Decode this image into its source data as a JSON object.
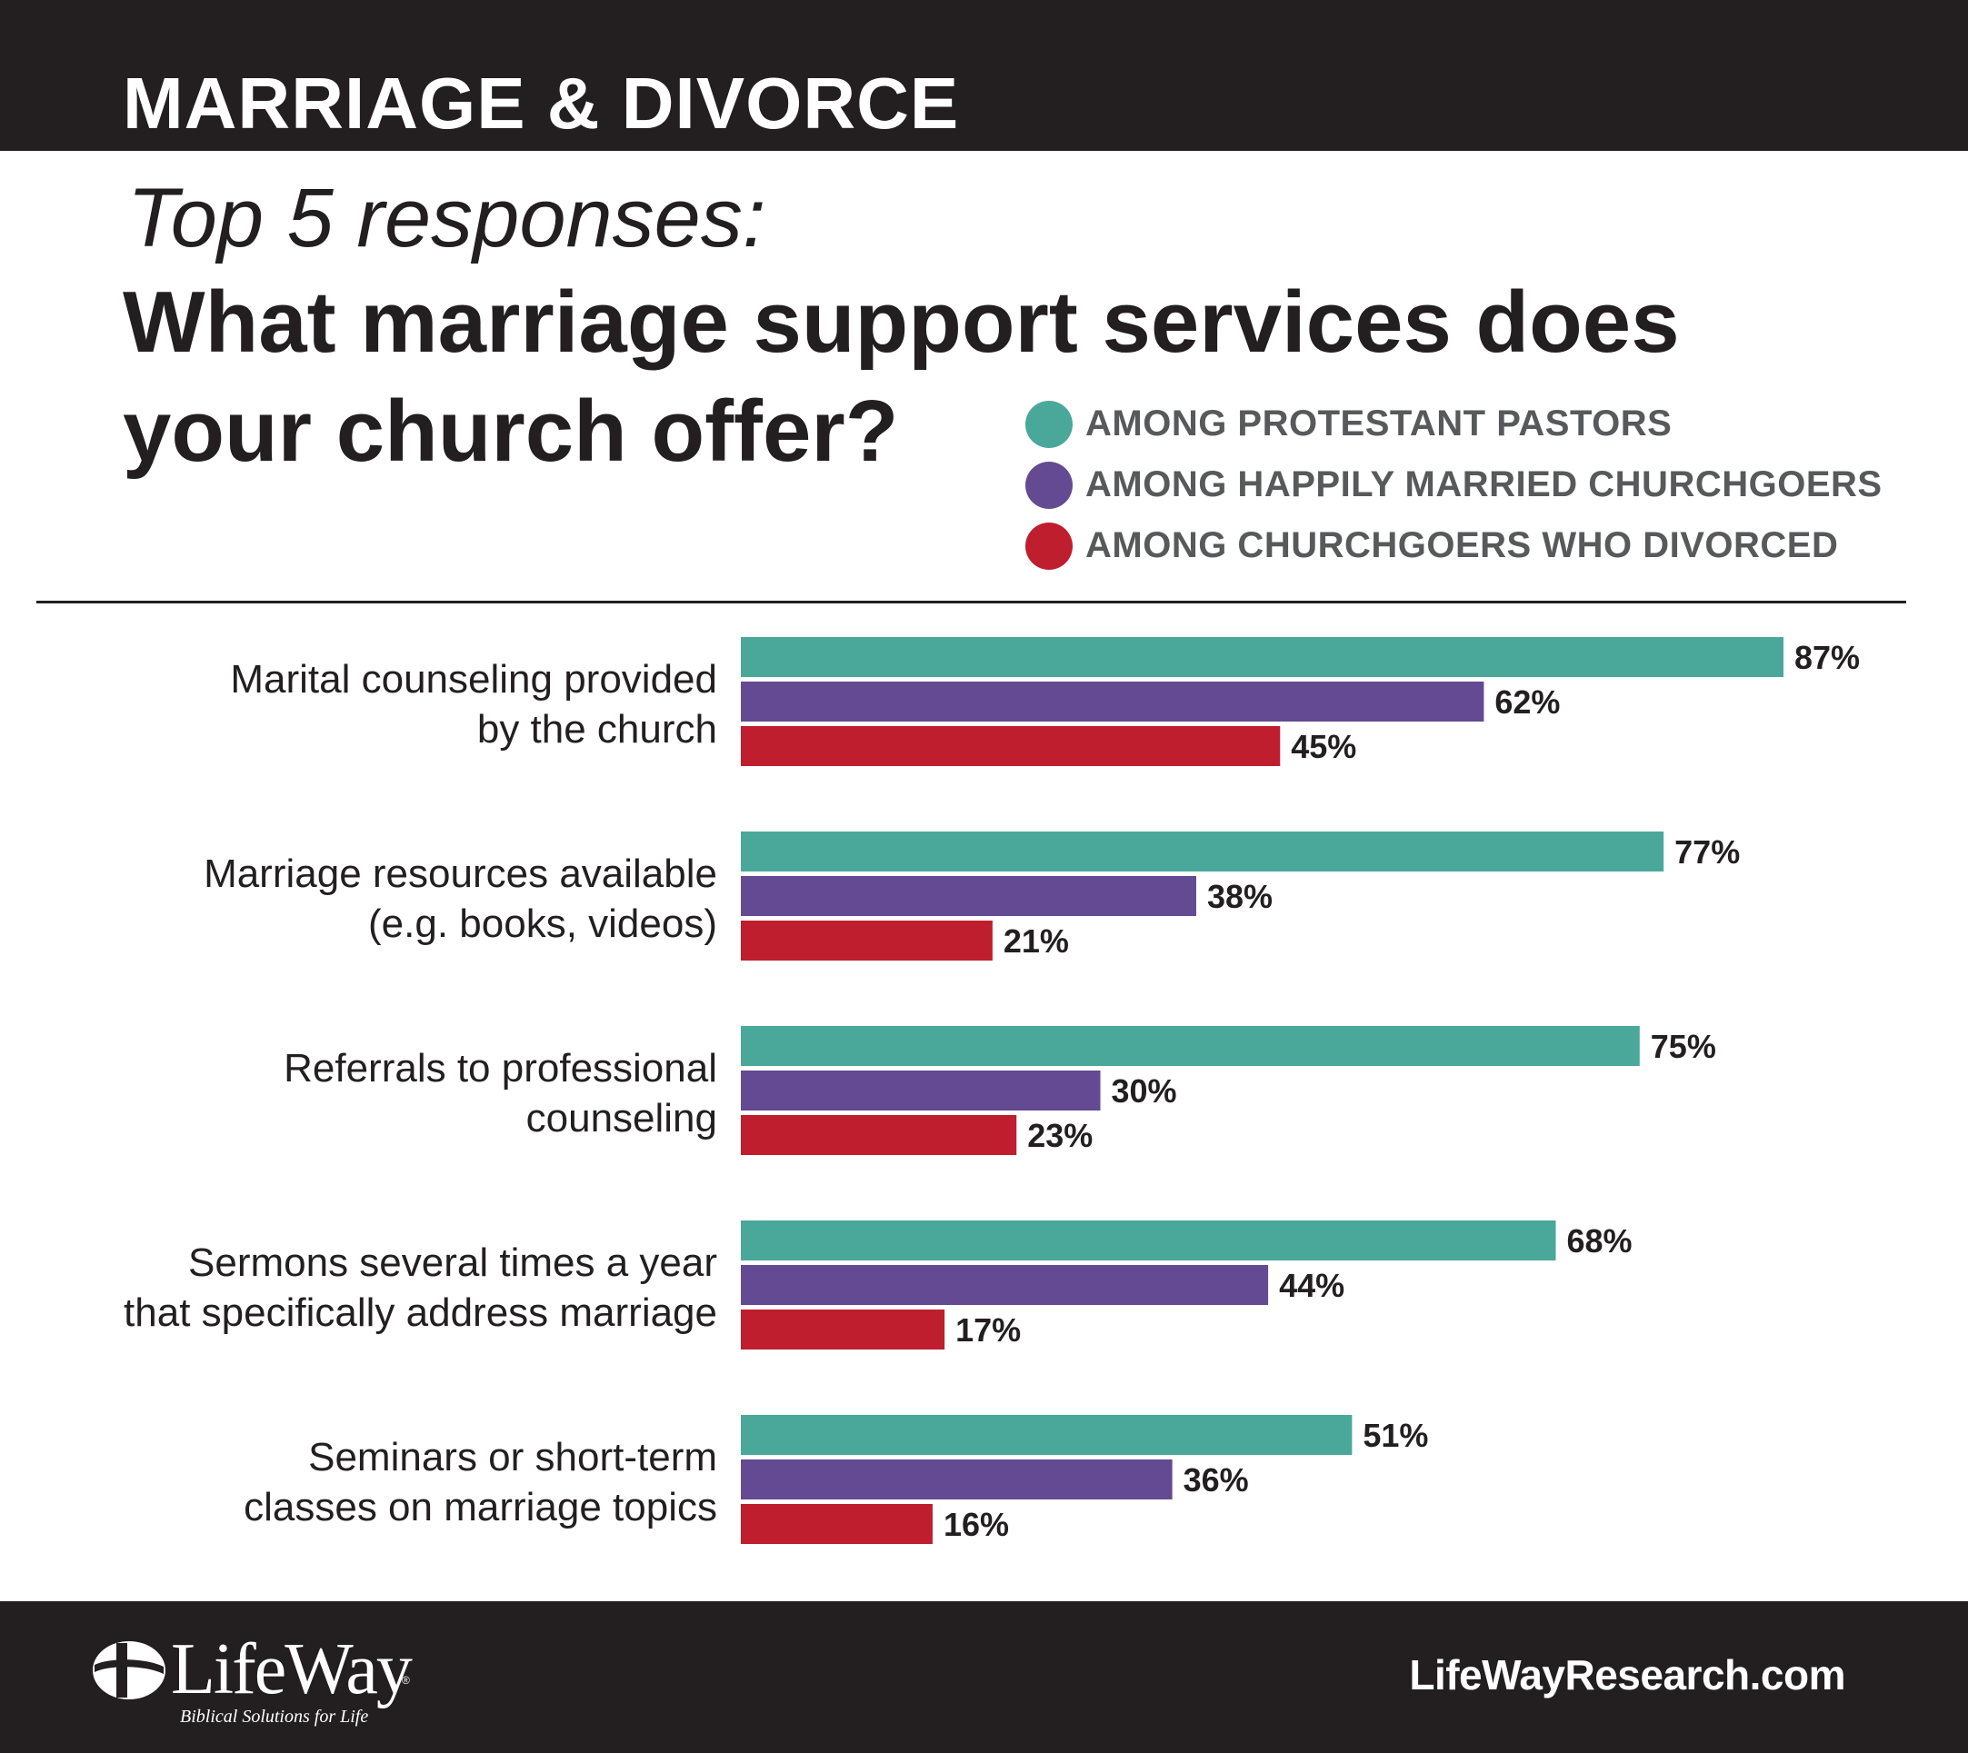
{
  "header": {
    "category": "MARRIAGE & DIVORCE",
    "subtitle": "Top 5 responses:",
    "title": "What marriage support services does your church offer?"
  },
  "colors": {
    "pastors": "#4aa89b",
    "married": "#634a92",
    "divorced": "#be1e2d",
    "dark": "#231f20",
    "legend_text": "#58595b"
  },
  "chart_data": {
    "type": "bar",
    "orientation": "horizontal",
    "categories": [
      "Marital counseling provided by the church",
      "Marriage resources available (e.g. books, videos)",
      "Referrals to professional counseling",
      "Sermons several times a year that specifically address marriage",
      "Seminars or short-term classes on marriage topics"
    ],
    "category_lines": [
      [
        "Marital counseling provided",
        "by the church"
      ],
      [
        "Marriage resources available",
        "(e.g. books, videos)"
      ],
      [
        "Referrals to professional",
        "counseling"
      ],
      [
        "Sermons several times a year",
        "that specifically address marriage"
      ],
      [
        "Seminars or short-term",
        "classes on marriage topics"
      ]
    ],
    "series": [
      {
        "name": "AMONG PROTESTANT PASTORS",
        "color": "#4aa89b",
        "values": [
          87,
          77,
          75,
          68,
          51
        ]
      },
      {
        "name": "AMONG HAPPILY MARRIED CHURCHGOERS",
        "color": "#634a92",
        "values": [
          62,
          38,
          30,
          44,
          36
        ]
      },
      {
        "name": "AMONG CHURCHGOERS WHO DIVORCED",
        "color": "#be1e2d",
        "values": [
          45,
          21,
          23,
          17,
          16
        ]
      }
    ],
    "value_suffix": "%",
    "xlim": [
      0,
      100
    ],
    "legend_position": "top-right",
    "grid": false
  },
  "footer": {
    "logo_text": "LifeWay",
    "logo_tagline": "Biblical Solutions for Life",
    "logo_reg": "®",
    "website": "LifeWayResearch.com"
  }
}
